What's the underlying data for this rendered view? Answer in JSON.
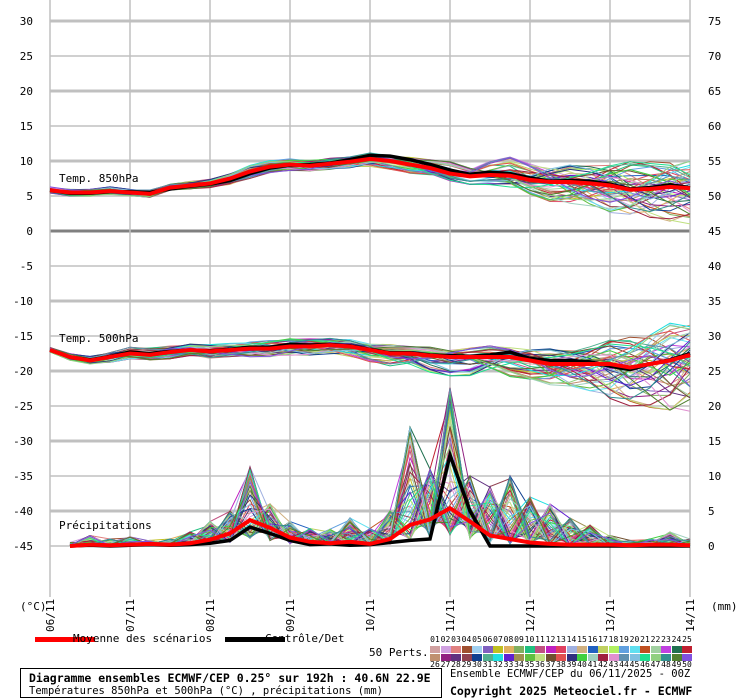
{
  "chart_data": {
    "type": "line",
    "title": "Diagramme ensembles ECMWF/CEP 0.25° sur 192h : 40.6N 22.9E",
    "subtitle": "Températures 850hPa et 500hPa (°C) , précipitations (mm)",
    "run_info": "Ensemble ECMWF/CEP du 06/11/2025 - 00Z",
    "copyright": "Copyright 2025 Meteociel.fr - ECMWF",
    "ylabel_left": "(°C)",
    "ylabel_right": "(mm)",
    "y_left_ticks": [
      30,
      25,
      20,
      15,
      10,
      5,
      0,
      -5,
      -10,
      -15,
      -20,
      -25,
      -30,
      -35,
      -40,
      -45
    ],
    "y_right_ticks": [
      75,
      70,
      65,
      60,
      55,
      50,
      45,
      40,
      35,
      30,
      25,
      20,
      15,
      10,
      5,
      0
    ],
    "ylim_left": [
      -45,
      30
    ],
    "ylim_right_mm": [
      0,
      75
    ],
    "x_ticks": [
      "06/11",
      "07/11",
      "08/11",
      "09/11",
      "10/11",
      "11/11",
      "12/11",
      "13/11",
      "14/11"
    ],
    "x_step_hours": 6,
    "grid": true,
    "panel_labels": [
      "Temp. 850hPa",
      "Temp. 500hPa",
      "Précipitations"
    ],
    "legend": {
      "mean": "Moyenne des scénarios",
      "control": "Contrôle/Det",
      "members": "50 Perts.",
      "mean_color": "#ff0000",
      "control_color": "#000000"
    },
    "member_numbers": [
      "01",
      "02",
      "03",
      "04",
      "05",
      "06",
      "07",
      "08",
      "09",
      "10",
      "11",
      "12",
      "13",
      "14",
      "15",
      "16",
      "17",
      "18",
      "19",
      "20",
      "21",
      "22",
      "23",
      "24",
      "25",
      "26",
      "27",
      "28",
      "29",
      "30",
      "31",
      "32",
      "33",
      "34",
      "35",
      "36",
      "37",
      "38",
      "39",
      "40",
      "41",
      "42",
      "43",
      "44",
      "45",
      "46",
      "47",
      "48",
      "49",
      "50"
    ],
    "member_colors": [
      "#d0a0a0",
      "#d0a0e0",
      "#e08080",
      "#a05030",
      "#a0d0f0",
      "#8060c0",
      "#c0c020",
      "#e0b060",
      "#80b060",
      "#20c080",
      "#c05080",
      "#c020c0",
      "#e04060",
      "#a0b0e0",
      "#d0b080",
      "#2060c0",
      "#c0d060",
      "#b0f060",
      "#60a0e0",
      "#60e0f0",
      "#c05020",
      "#a0d0a0",
      "#c040e0",
      "#207050",
      "#c02030",
      "#c09070",
      "#902080",
      "#603080",
      "#904050",
      "#104090",
      "#50b090",
      "#20e0e0",
      "#6020d0",
      "#a09050",
      "#60c040",
      "#c0e080",
      "#705030",
      "#e05050",
      "#303080",
      "#40d040",
      "#a0d0c0",
      "#a02040",
      "#e090d0",
      "#6090b0",
      "#80c0e0",
      "#20e090",
      "#90d080",
      "#309090",
      "#508030",
      "#8050e0"
    ],
    "series": [
      {
        "name": "Temp. 850hPa",
        "unit": "°C",
        "mean": [
          5.8,
          5.5,
          5.5,
          5.7,
          5.5,
          5.3,
          6.2,
          6.5,
          6.8,
          7.5,
          8.5,
          9.2,
          9.5,
          9.3,
          9.6,
          9.9,
          10.3,
          10.0,
          9.5,
          9.0,
          8.2,
          7.8,
          8.0,
          7.9,
          7.3,
          7.0,
          7.0,
          6.8,
          6.5,
          5.9,
          6.0,
          6.3,
          6.1
        ],
        "control": [
          5.8,
          5.4,
          5.4,
          5.6,
          5.6,
          5.5,
          6.0,
          6.4,
          6.7,
          7.2,
          8.2,
          9.0,
          9.4,
          9.5,
          9.7,
          10.2,
          10.8,
          10.7,
          10.2,
          9.5,
          8.7,
          8.1,
          8.4,
          8.2,
          7.6,
          7.1,
          7.2,
          7.1,
          6.7,
          6.0,
          6.2,
          6.6,
          6.2
        ],
        "min": [
          5.4,
          5.0,
          5.0,
          5.2,
          5.0,
          4.8,
          5.8,
          6.0,
          6.2,
          6.6,
          7.5,
          8.3,
          8.6,
          8.5,
          8.8,
          9.0,
          9.2,
          8.8,
          8.2,
          7.6,
          7.0,
          6.6,
          6.5,
          5.8,
          5.0,
          4.2,
          3.8,
          3.5,
          2.6,
          2.0,
          1.5,
          1.3,
          1.0
        ],
        "max": [
          6.3,
          6.0,
          6.0,
          6.3,
          6.0,
          5.9,
          6.7,
          7.1,
          7.4,
          8.2,
          9.4,
          10.2,
          10.3,
          10.1,
          10.4,
          10.6,
          11.2,
          10.9,
          10.6,
          10.2,
          10.0,
          9.6,
          10.3,
          10.6,
          9.8,
          9.5,
          9.5,
          9.3,
          9.8,
          10.0,
          9.9,
          10.4,
          10.2
        ]
      },
      {
        "name": "Temp. 500hPa",
        "unit": "°C",
        "mean": [
          -17.0,
          -18.0,
          -18.5,
          -18.0,
          -17.5,
          -17.7,
          -17.3,
          -17.0,
          -17.2,
          -17.0,
          -16.8,
          -16.8,
          -16.5,
          -16.5,
          -16.3,
          -16.5,
          -17.0,
          -17.5,
          -17.5,
          -17.8,
          -18.0,
          -18.0,
          -18.0,
          -18.0,
          -18.5,
          -19.0,
          -19.0,
          -19.0,
          -19.0,
          -19.5,
          -19.0,
          -18.5,
          -17.7
        ],
        "control": [
          -17.0,
          -18.0,
          -18.4,
          -17.9,
          -17.3,
          -17.5,
          -17.2,
          -17.0,
          -17.1,
          -16.9,
          -16.6,
          -16.6,
          -16.2,
          -16.3,
          -16.2,
          -16.4,
          -16.9,
          -17.4,
          -17.4,
          -17.7,
          -17.8,
          -17.9,
          -17.7,
          -17.3,
          -18.2,
          -18.5,
          -18.5,
          -18.7,
          -19.3,
          -19.8,
          -19.0,
          -18.4,
          -17.5
        ],
        "min": [
          -17.3,
          -18.5,
          -19.0,
          -18.8,
          -18.3,
          -18.5,
          -18.3,
          -17.9,
          -18.3,
          -18.0,
          -18.0,
          -18.0,
          -17.8,
          -17.8,
          -17.6,
          -18.0,
          -18.7,
          -19.3,
          -19.5,
          -20.3,
          -20.7,
          -21.0,
          -20.6,
          -21.0,
          -21.3,
          -22.0,
          -22.5,
          -23.0,
          -24.5,
          -25.0,
          -25.5,
          -26.5,
          -25.8
        ],
        "max": [
          -16.6,
          -17.5,
          -17.9,
          -17.3,
          -16.6,
          -16.7,
          -16.4,
          -16.1,
          -16.2,
          -16.0,
          -15.7,
          -15.6,
          -15.4,
          -15.4,
          -15.3,
          -15.5,
          -16.0,
          -16.2,
          -16.5,
          -16.5,
          -16.5,
          -16.6,
          -16.4,
          -16.6,
          -16.5,
          -16.8,
          -17.0,
          -16.5,
          -15.5,
          -15.0,
          -14.0,
          -13.0,
          -13.3
        ]
      },
      {
        "name": "Précipitations",
        "unit": "mm",
        "mean": [
          null,
          0,
          0.2,
          0.1,
          0.2,
          0.3,
          0.2,
          0.4,
          0.9,
          1.8,
          3.7,
          2.6,
          1.2,
          0.6,
          0.4,
          0.6,
          0.3,
          1.0,
          3.0,
          3.8,
          5.4,
          3.5,
          1.5,
          1.0,
          0.5,
          0.3,
          0.2,
          0.2,
          0.2,
          0.1,
          0.2,
          0.2,
          0.1
        ],
        "control": [
          null,
          0,
          0.1,
          0,
          0.1,
          0.2,
          0.1,
          0.2,
          0.4,
          0.8,
          2.7,
          1.8,
          0.8,
          0.2,
          0.3,
          0.1,
          0.2,
          0.5,
          0.8,
          1.0,
          13.0,
          5.0,
          0,
          0,
          0,
          0,
          0,
          0,
          0,
          0,
          0,
          0,
          0
        ],
        "max": [
          null,
          0.5,
          1.5,
          1.0,
          1.3,
          0.8,
          1.0,
          2.0,
          3.5,
          5.0,
          11.3,
          6.0,
          3.5,
          2.5,
          2.4,
          4.0,
          2.5,
          5.0,
          17.0,
          11.0,
          22.6,
          10.0,
          8.5,
          10.0,
          7.0,
          6.0,
          4.0,
          3.0,
          1.5,
          0.8,
          1.0,
          2.0,
          1.0
        ],
        "min": [
          null,
          0,
          0,
          0,
          0,
          0,
          0,
          0,
          0,
          0,
          0,
          0,
          0,
          0,
          0,
          0,
          0,
          0,
          0,
          0,
          0,
          0,
          0,
          0,
          0,
          0,
          0,
          0,
          0,
          0,
          0,
          0,
          0
        ]
      }
    ]
  }
}
